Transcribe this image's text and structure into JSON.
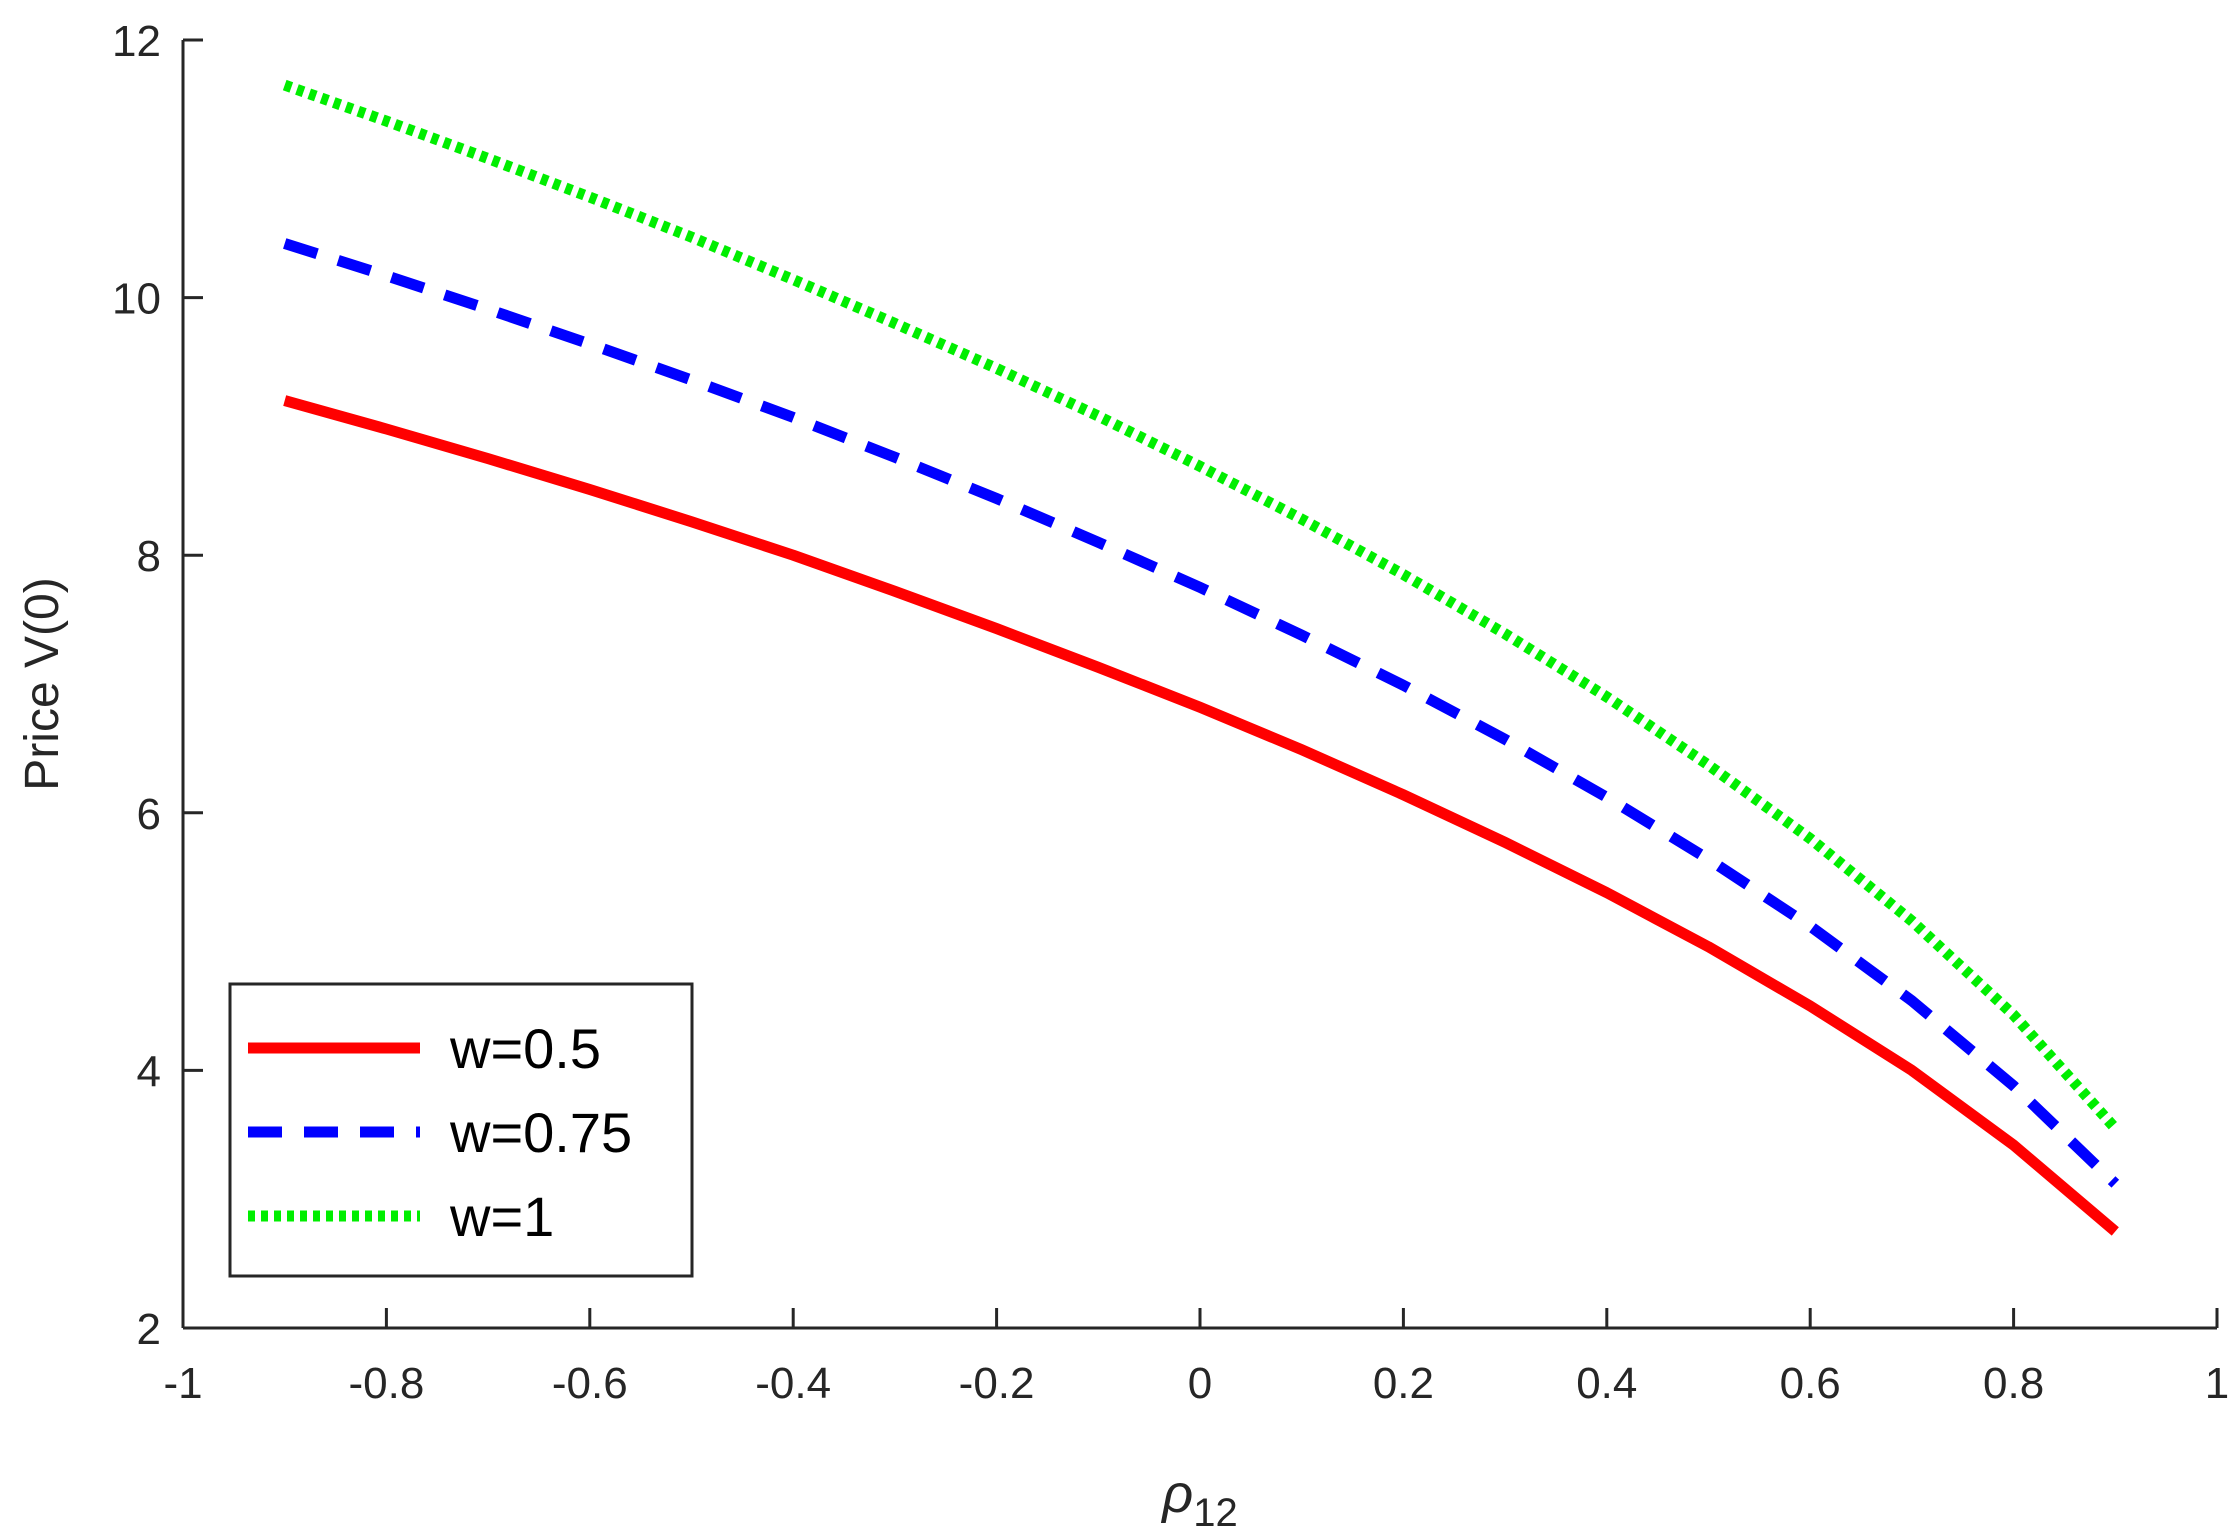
{
  "chart_data": {
    "type": "line",
    "title": "",
    "xlabel": "ρ",
    "xlabel_subscript": "12",
    "ylabel": "Price V(0)",
    "xlim": [
      -1,
      1
    ],
    "ylim": [
      2,
      12
    ],
    "xticks": [
      -1,
      -0.8,
      -0.6,
      -0.4,
      -0.2,
      0,
      0.2,
      0.4,
      0.6,
      0.8,
      1
    ],
    "xtick_labels": [
      "-1",
      "-0.8",
      "-0.6",
      "-0.4",
      "-0.2",
      "0",
      "0.2",
      "0.4",
      "0.6",
      "0.8",
      "1"
    ],
    "yticks": [
      2,
      4,
      6,
      8,
      10,
      12
    ],
    "ytick_labels": [
      "2",
      "4",
      "6",
      "8",
      "10",
      "12"
    ],
    "grid": false,
    "legend_position": "bottom-left",
    "x": [
      -0.9,
      -0.8,
      -0.7,
      -0.6,
      -0.5,
      -0.4,
      -0.3,
      -0.2,
      -0.1,
      0,
      0.1,
      0.2,
      0.3,
      0.4,
      0.5,
      0.6,
      0.7,
      0.8,
      0.9
    ],
    "series": [
      {
        "name": "w=0.5",
        "color": "#ff0000",
        "style": "solid",
        "values": [
          9.2,
          8.98,
          8.75,
          8.51,
          8.26,
          8.0,
          7.72,
          7.43,
          7.13,
          6.82,
          6.49,
          6.14,
          5.77,
          5.38,
          4.96,
          4.5,
          4.0,
          3.42,
          2.75
        ]
      },
      {
        "name": "w=0.75",
        "color": "#0000ff",
        "style": "dashed",
        "values": [
          10.42,
          10.17,
          9.91,
          9.64,
          9.36,
          9.07,
          8.76,
          8.44,
          8.1,
          7.75,
          7.38,
          6.99,
          6.57,
          6.12,
          5.64,
          5.12,
          4.54,
          3.88,
          3.12
        ]
      },
      {
        "name": "w=1",
        "color": "#00ee00",
        "style": "dotted",
        "values": [
          11.65,
          11.37,
          11.08,
          10.78,
          10.47,
          10.14,
          9.8,
          9.45,
          9.08,
          8.69,
          8.28,
          7.85,
          7.39,
          6.9,
          6.37,
          5.8,
          5.16,
          4.43,
          3.55
        ]
      }
    ]
  }
}
